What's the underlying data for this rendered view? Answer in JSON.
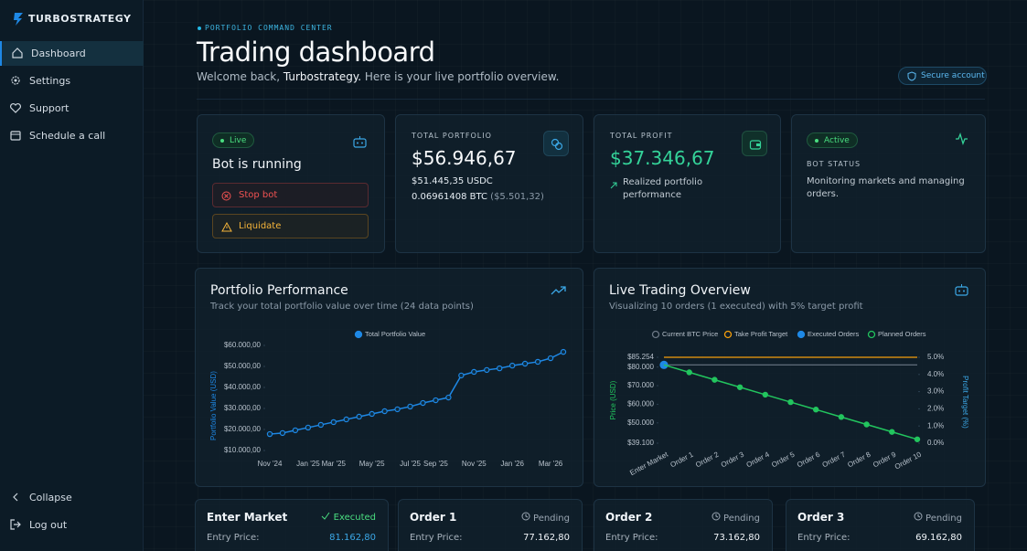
{
  "sidebar": {
    "brand": "TURBOSTRATEGY",
    "nav": [
      "Dashboard",
      "Settings",
      "Support",
      "Schedule a call"
    ],
    "footer": [
      "Collapse",
      "Log out"
    ]
  },
  "header": {
    "eyebrow": "PORTFOLIO COMMAND CENTER",
    "title": "Trading dashboard",
    "welcome": [
      "Welcome back, ",
      "Turbostrategy.",
      " Here is your live portfolio overview."
    ],
    "secure": "Secure account"
  },
  "cards": {
    "bot": {
      "badge": "Live",
      "title": "Bot is running",
      "stop": "Stop bot",
      "liquidate": "Liquidate"
    },
    "portfolio": {
      "label": "TOTAL PORTFOLIO",
      "value": "$56.946,67",
      "usdc": "$51.445,35 USDC",
      "btc": "0.06961408 BTC",
      "btc_value": "($5.501,32)"
    },
    "profit": {
      "label": "TOTAL PROFIT",
      "value": "$37.346,67",
      "note": "Realized portfolio performance"
    },
    "status": {
      "badge": "Active",
      "label": "BOT STATUS",
      "note": "Monitoring markets and managing orders."
    }
  },
  "chart_data": [
    {
      "type": "line",
      "title": "Portfolio Performance",
      "subtitle": "Track your total portfolio value over time (24 data points)",
      "y_label": "Portfolio Value (USD)",
      "categories": [
        "Nov '24",
        null,
        null,
        "Jan '25",
        null,
        "Mar '25",
        null,
        null,
        "May '25",
        null,
        null,
        "Jul '25",
        null,
        "Sep '25",
        null,
        null,
        "Nov '25",
        null,
        null,
        "Jan '26",
        null,
        null,
        "Mar '26",
        null
      ],
      "series": [
        {
          "name": "Total Portfolio Value",
          "color": "#1e88e5",
          "mode": "line+markers",
          "values": [
            17800,
            18300,
            19600,
            20900,
            22200,
            23500,
            24800,
            26100,
            27400,
            28700,
            29600,
            30900,
            32600,
            33900,
            35200,
            45700,
            47400,
            48300,
            49100,
            50400,
            51300,
            52200,
            53900,
            56900
          ]
        }
      ],
      "ylim": [
        10000,
        60000
      ],
      "yticks": [
        {
          "value": 10000,
          "label": "$10.000,00"
        },
        {
          "value": 20000,
          "label": "$20.000,00"
        },
        {
          "value": 30000,
          "label": "$30.000,00"
        },
        {
          "value": 40000,
          "label": "$40.000,00"
        },
        {
          "value": 50000,
          "label": "$50.000,00"
        },
        {
          "value": 60000,
          "label": "$60.000,00"
        }
      ]
    },
    {
      "type": "line",
      "title": "Live Trading Overview",
      "subtitle": "Visualizing 10 orders (1 executed) with 5% target profit",
      "y_label": "Price (USD)",
      "y2_label": "Profit Target (%)",
      "categories": [
        "Enter Market",
        "Order 1",
        "Order 2",
        "Order 3",
        "Order 4",
        "Order 5",
        "Order 6",
        "Order 7",
        "Order 8",
        "Order 9",
        "Order 10"
      ],
      "series": [
        {
          "name": "Current BTC Price",
          "color": "#6b7785",
          "mode": "line",
          "values": [
            81162.8,
            81162.8,
            81162.8,
            81162.8,
            81162.8,
            81162.8,
            81162.8,
            81162.8,
            81162.8,
            81162.8,
            81162.8
          ]
        },
        {
          "name": "Take Profit Target",
          "color": "#f59e0b",
          "mode": "line",
          "values": [
            85254,
            85254,
            85254,
            85254,
            85254,
            85254,
            85254,
            85254,
            85254,
            85254,
            85254
          ]
        },
        {
          "name": "Executed Orders",
          "color": "#1e88e5",
          "mode": "markers",
          "values": [
            81162.8,
            null,
            null,
            null,
            null,
            null,
            null,
            null,
            null,
            null,
            null
          ]
        },
        {
          "name": "Planned Orders",
          "color": "#22c55e",
          "mode": "line+markers",
          "values": [
            null,
            77162.8,
            73162.8,
            69162.8,
            65162.8,
            61162.8,
            57162.8,
            53162.8,
            49162.8,
            45162.8,
            41162.8
          ]
        }
      ],
      "ylim": [
        39100,
        85254
      ],
      "yticks": [
        {
          "value": 39100,
          "label": "$39.100"
        },
        {
          "value": 50000,
          "label": "$50.000"
        },
        {
          "value": 60000,
          "label": "$60.000"
        },
        {
          "value": 70000,
          "label": "$70.000"
        },
        {
          "value": 80000,
          "label": "$80.000"
        },
        {
          "value": 85254,
          "label": "$85.254"
        }
      ],
      "y2lim": [
        0,
        5
      ],
      "y2ticks": [
        {
          "value": 0,
          "label": "0.0%"
        },
        {
          "value": 1,
          "label": "1.0%"
        },
        {
          "value": 2,
          "label": "2.0%"
        },
        {
          "value": 3,
          "label": "3.0%"
        },
        {
          "value": 4,
          "label": "4.0%"
        },
        {
          "value": 5,
          "label": "5.0%"
        }
      ]
    }
  ],
  "orders": [
    {
      "name": "Enter Market",
      "status": "Executed",
      "label": "Entry Price:",
      "price": "81.162,80"
    },
    {
      "name": "Order 1",
      "status": "Pending",
      "label": "Entry Price:",
      "price": "77.162,80"
    },
    {
      "name": "Order 2",
      "status": "Pending",
      "label": "Entry Price:",
      "price": "73.162,80"
    },
    {
      "name": "Order 3",
      "status": "Pending",
      "label": "Entry Price:",
      "price": "69.162,80"
    }
  ]
}
